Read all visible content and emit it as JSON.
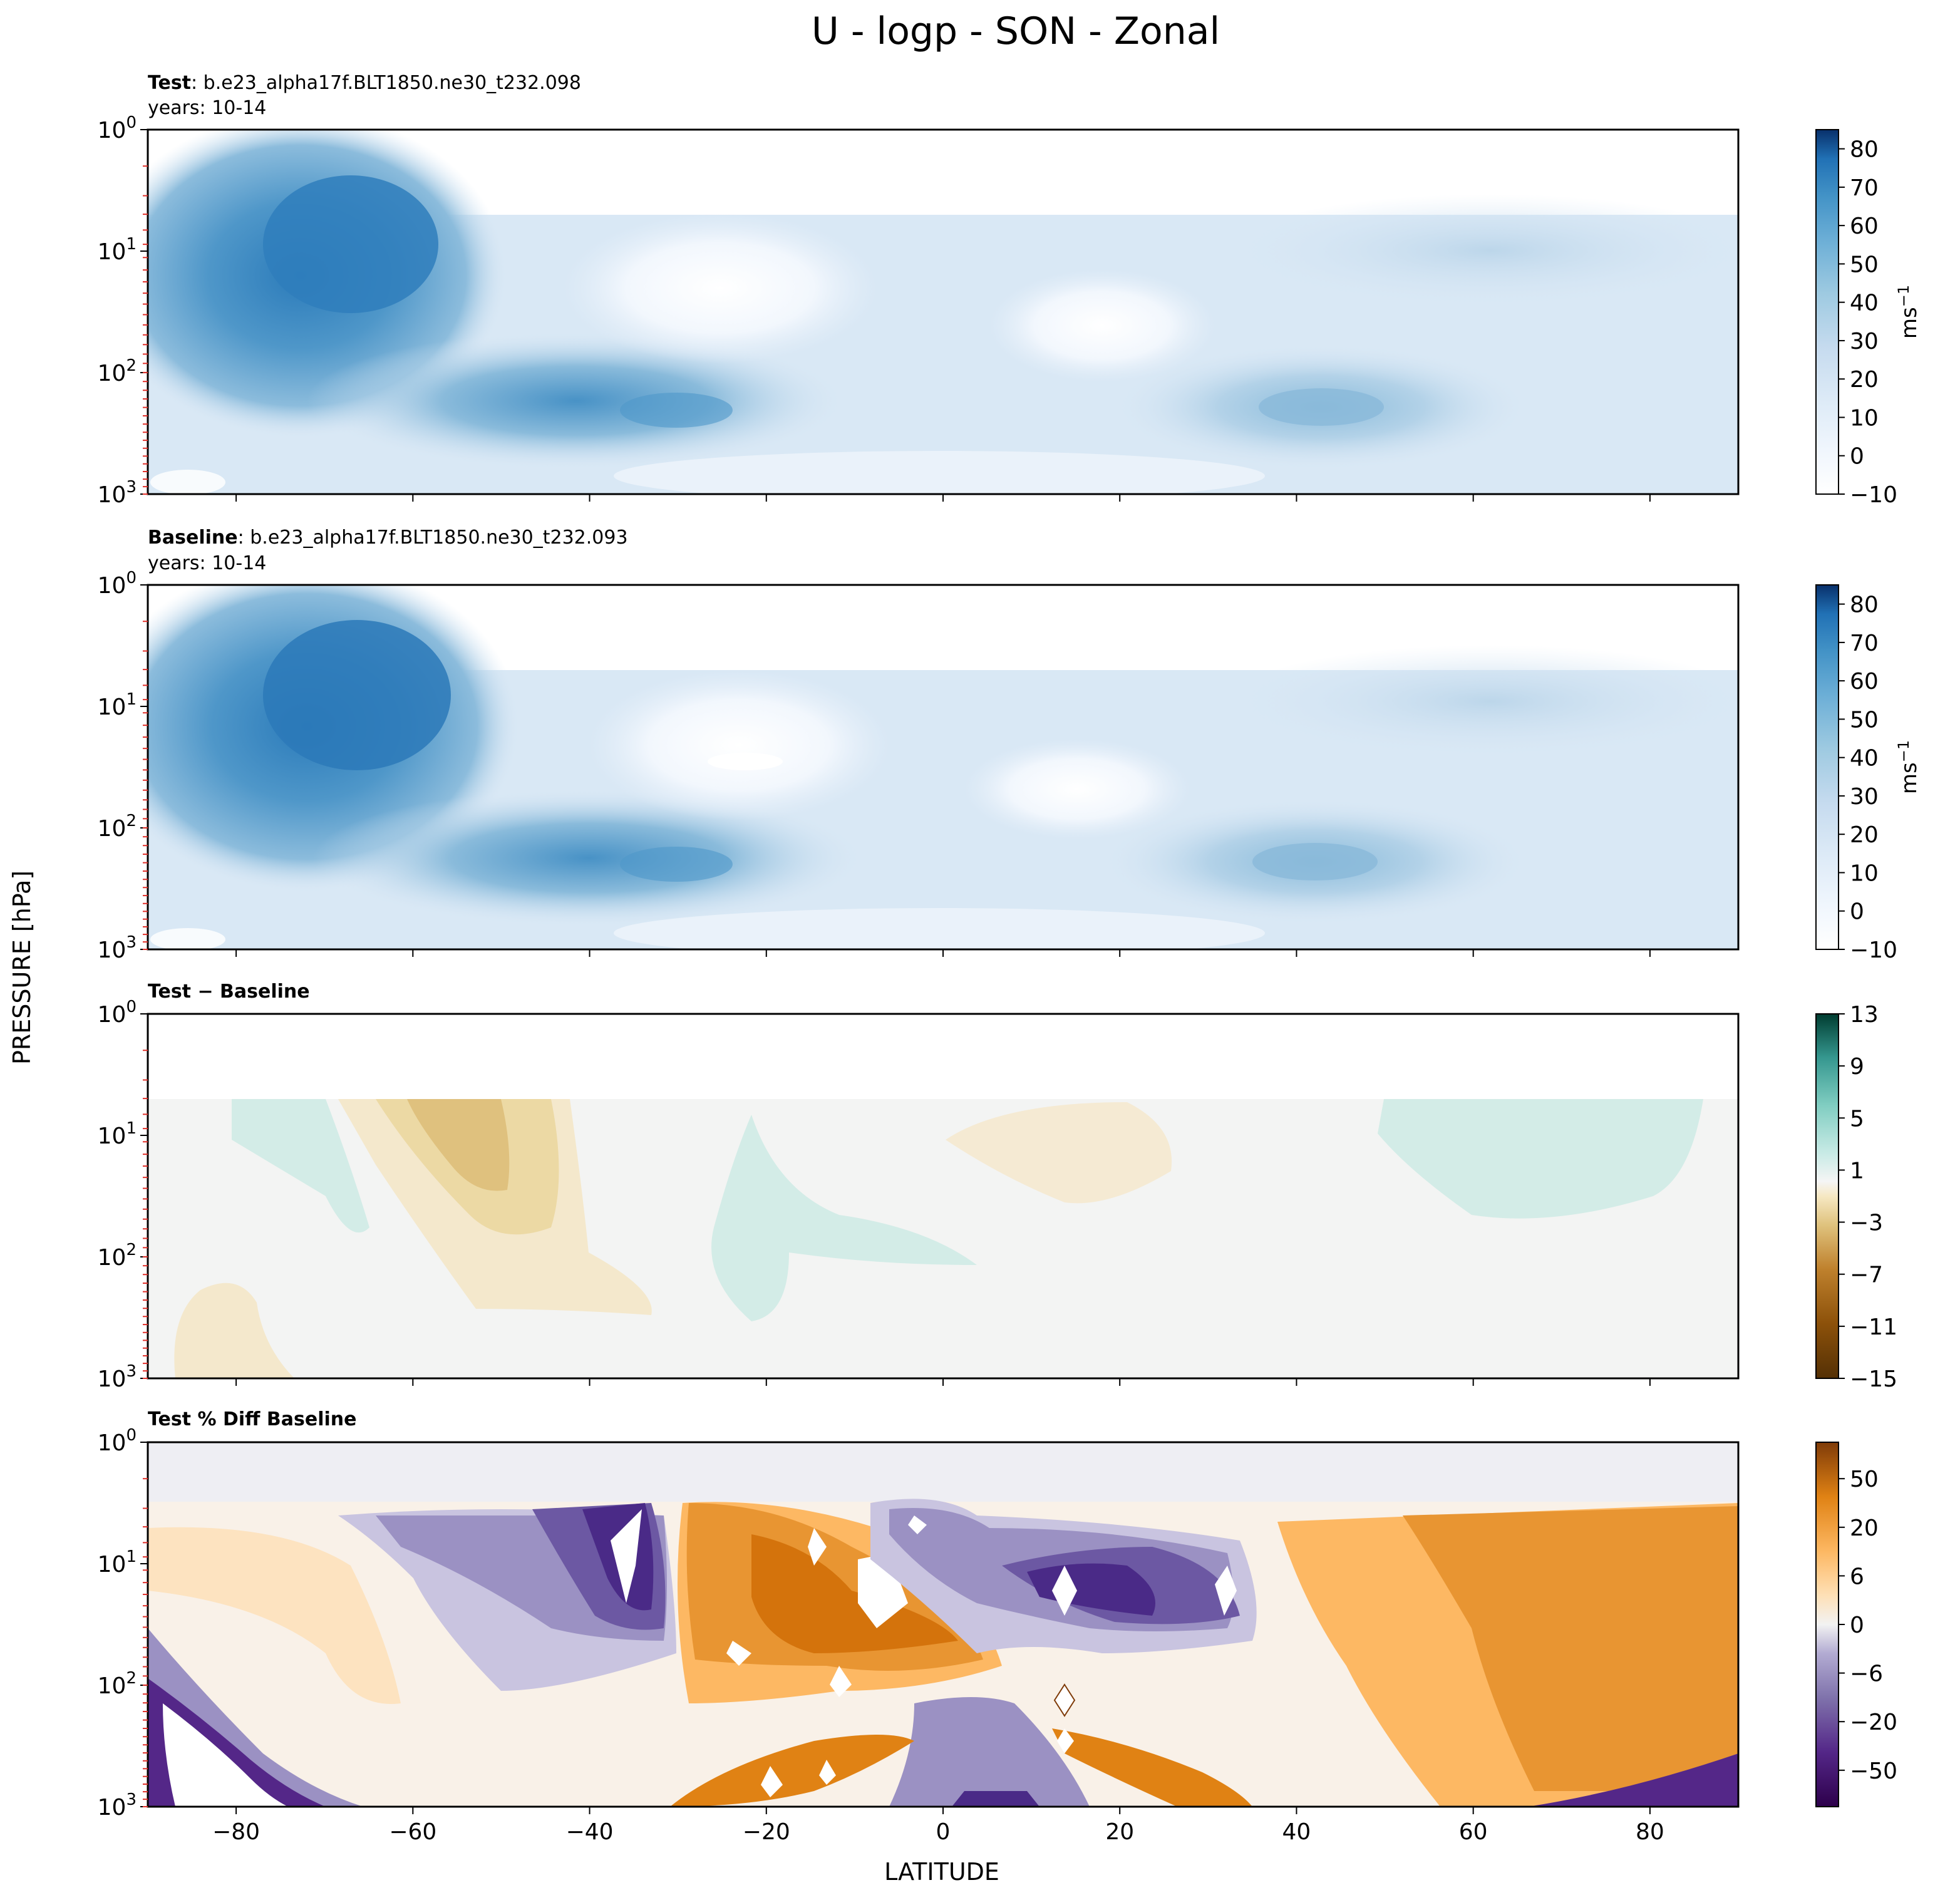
{
  "figure": {
    "title": "U - logp - SON - Zonal",
    "ylabel": "PRESSURE [hPa]",
    "xlabel": "LATITUDE",
    "x_ticks": [
      "−80",
      "−60",
      "−40",
      "−20",
      "0",
      "20",
      "40",
      "60",
      "80"
    ],
    "y_tick_base": "10",
    "y_tick_exponents": [
      "0",
      "1",
      "2",
      "3"
    ]
  },
  "panels": [
    {
      "title_bold": "Test",
      "title_rest": ": b.e23_alpha17f.BLT1850.ne30_t232.098",
      "subtitle": "years: 10-14",
      "colorbar": {
        "ticks": [
          "80",
          "70",
          "60",
          "50",
          "40",
          "30",
          "20",
          "10",
          "0",
          "−10"
        ],
        "label_base": "ms",
        "label_sup": "−1"
      }
    },
    {
      "title_bold": "Baseline",
      "title_rest": ": b.e23_alpha17f.BLT1850.ne30_t232.093",
      "subtitle": "years: 10-14",
      "colorbar": {
        "ticks": [
          "80",
          "70",
          "60",
          "50",
          "40",
          "30",
          "20",
          "10",
          "0",
          "−10"
        ],
        "label_base": "ms",
        "label_sup": "−1"
      }
    },
    {
      "title_bold": "Test − Baseline",
      "title_rest": "",
      "subtitle": "",
      "colorbar": {
        "ticks": [
          "13",
          "9",
          "5",
          "1",
          "−3",
          "−7",
          "−11",
          "−15"
        ],
        "label_base": "",
        "label_sup": ""
      }
    },
    {
      "title_bold": "Test % Diff Baseline",
      "title_rest": "",
      "subtitle": "",
      "colorbar": {
        "ticks": [
          "50",
          "20",
          "6",
          "0",
          "−6",
          "−20",
          "−50"
        ],
        "label_base": "",
        "label_sup": ""
      }
    }
  ],
  "chart_data": [
    {
      "type": "heatmap",
      "title": "Test : b.e23_alpha17f.BLT1850.ne30_t232.098",
      "xlabel": "LATITUDE",
      "ylabel": "PRESSURE [hPa]",
      "xlim": [
        -90,
        90
      ],
      "ylim": [
        1000,
        1
      ],
      "yscale": "log",
      "colormap": "Blues",
      "levels": [
        -10,
        85
      ],
      "approx_features": [
        {
          "lat": -64,
          "p": 10,
          "u": 60
        },
        {
          "lat": -30,
          "p": 200,
          "u": 35
        },
        {
          "lat": 43,
          "p": 200,
          "u": 30
        },
        {
          "lat": -12,
          "p": 20,
          "u": -5
        },
        {
          "lat": 10,
          "p": 50,
          "u": -5
        }
      ]
    },
    {
      "type": "heatmap",
      "title": "Baseline : b.e23_alpha17f.BLT1850.ne30_t232.093",
      "xlabel": "LATITUDE",
      "ylabel": "PRESSURE [hPa]",
      "xlim": [
        -90,
        90
      ],
      "ylim": [
        1000,
        1
      ],
      "yscale": "log",
      "colormap": "Blues",
      "levels": [
        -10,
        85
      ],
      "approx_features": [
        {
          "lat": -64,
          "p": 10,
          "u": 65
        },
        {
          "lat": -30,
          "p": 200,
          "u": 35
        },
        {
          "lat": 43,
          "p": 200,
          "u": 30
        },
        {
          "lat": -12,
          "p": 25,
          "u": -8
        },
        {
          "lat": 10,
          "p": 50,
          "u": -5
        }
      ]
    },
    {
      "type": "heatmap",
      "title": "Test − Baseline",
      "xlabel": "LATITUDE",
      "ylabel": "PRESSURE [hPa]",
      "xlim": [
        -90,
        90
      ],
      "ylim": [
        1000,
        1
      ],
      "yscale": "log",
      "colormap": "BrBG",
      "levels": [
        -15,
        13
      ],
      "approx_features": [
        {
          "lat": -57,
          "p": 15,
          "du": -6
        },
        {
          "lat": 22,
          "p": 15,
          "du": -2
        },
        {
          "lat": 72,
          "p": 20,
          "du": 3
        },
        {
          "lat": -75,
          "p": 30,
          "du": 2
        },
        {
          "lat": -15,
          "p": 100,
          "du": 2
        }
      ]
    },
    {
      "type": "heatmap",
      "title": "Test % Diff Baseline",
      "xlabel": "LATITUDE",
      "ylabel": "PRESSURE [hPa]",
      "xlim": [
        -90,
        90
      ],
      "ylim": [
        1000,
        1
      ],
      "yscale": "log",
      "colormap": "PuOr_r",
      "levels": [
        -50,
        50
      ],
      "approx_features": [
        {
          "lat": -40,
          "p": 20,
          "pct": -20
        },
        {
          "lat": -15,
          "p": 40,
          "pct": 30
        },
        {
          "lat": 20,
          "p": 20,
          "pct": -30
        },
        {
          "lat": 70,
          "p": 60,
          "pct": 20
        },
        {
          "lat": -80,
          "p": 700,
          "pct": -50
        }
      ]
    }
  ]
}
